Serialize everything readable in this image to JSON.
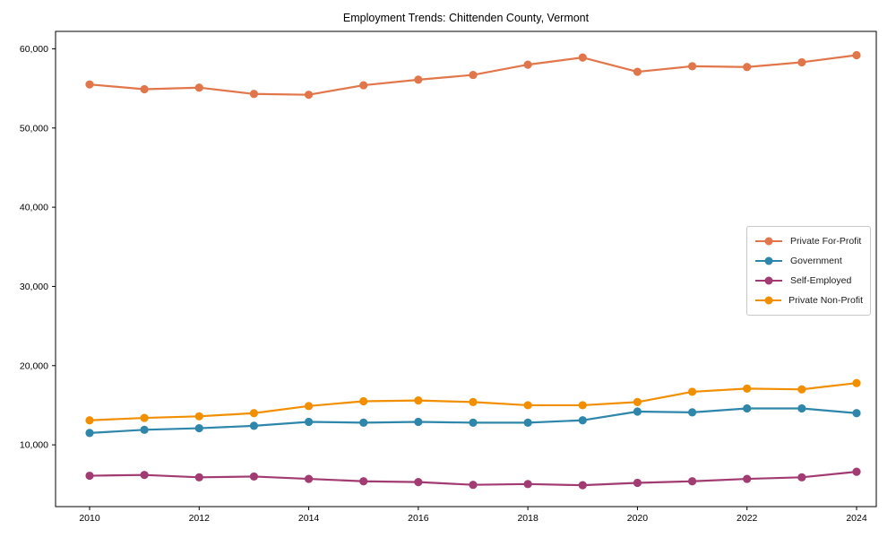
{
  "figure": {
    "title": "Employment Trends: Chittenden County, Vermont",
    "background_color": "#ffffff",
    "spine_color": "#000000",
    "tick_label_color": "#000000"
  },
  "legend": {
    "border_color": "#c8c8c8",
    "background_color": "#ffffff",
    "position": "center right",
    "entries": [
      "Private For-Profit",
      "Government",
      "Self-Employed",
      "Private Non-Profit"
    ]
  },
  "chart_data": {
    "type": "line",
    "title": "Employment Trends: Chittenden County, Vermont",
    "xlabel": "",
    "ylabel": "",
    "x": [
      2010,
      2011,
      2012,
      2013,
      2014,
      2015,
      2016,
      2017,
      2018,
      2019,
      2020,
      2021,
      2022,
      2023,
      2024
    ],
    "series": [
      {
        "name": "Private For-Profit",
        "color": "#E2764B",
        "marker": "o",
        "values": [
          55500,
          54900,
          55100,
          54300,
          54200,
          55400,
          56100,
          56700,
          58000,
          58900,
          57100,
          57800,
          57700,
          58300,
          59200
        ]
      },
      {
        "name": "Government",
        "color": "#2E86AB",
        "marker": "o",
        "values": [
          11500,
          11900,
          12100,
          12400,
          12900,
          12800,
          12900,
          12800,
          12800,
          13100,
          14200,
          14100,
          14600,
          14600,
          14000
        ]
      },
      {
        "name": "Self-Employed",
        "color": "#A23B72",
        "marker": "o",
        "values": [
          6100,
          6200,
          5900,
          6000,
          5700,
          5400,
          5300,
          4950,
          5050,
          4900,
          5200,
          5400,
          5700,
          5900,
          6600
        ]
      },
      {
        "name": "Private Non-Profit",
        "color": "#F18F01",
        "marker": "o",
        "values": [
          13100,
          13400,
          13600,
          14000,
          14900,
          15500,
          15600,
          15400,
          15000,
          15000,
          15400,
          16700,
          17100,
          17000,
          17800
        ]
      }
    ],
    "ylim": [
      2200,
      62200
    ],
    "yticks": [
      10000,
      20000,
      30000,
      40000,
      50000,
      60000
    ],
    "ytick_labels": [
      "10,000",
      "20,000",
      "30,000",
      "40,000",
      "50,000",
      "60,000"
    ],
    "xticks": [
      2010,
      2012,
      2014,
      2016,
      2018,
      2020,
      2022,
      2024
    ],
    "xtick_labels": [
      "2010",
      "2012",
      "2014",
      "2016",
      "2018",
      "2020",
      "2022",
      "2024"
    ],
    "grid": false,
    "legend_position": "center right"
  }
}
